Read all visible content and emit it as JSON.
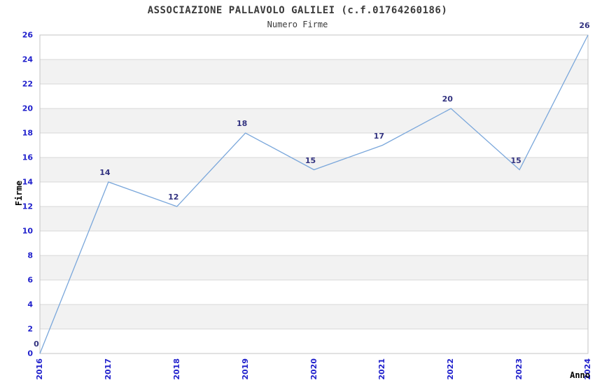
{
  "chart_data": {
    "type": "line",
    "title": "ASSOCIAZIONE PALLAVOLO GALILEI (c.f.01764260186)",
    "subtitle": "Numero Firme",
    "xlabel": "Anno",
    "ylabel": "Firme",
    "categories": [
      "2016",
      "2017",
      "2018",
      "2019",
      "2020",
      "2021",
      "2022",
      "2023",
      "2024"
    ],
    "series": [
      {
        "name": "Numero Firme",
        "values": [
          0,
          14,
          12,
          18,
          15,
          17,
          20,
          15,
          26
        ]
      }
    ],
    "ylim": [
      0,
      26
    ],
    "ytick_step": 2,
    "grid": "horizontal-only",
    "legend": "none",
    "banded_background": true,
    "data_labels_shown": true,
    "colors": {
      "background": "#ffffff",
      "band": "#f2f2f2",
      "gridline": "#d8d8d8",
      "plot_border": "#c4c4c4",
      "line": "#7aa7db",
      "tick_label": "#2121cc",
      "data_label": "#333380",
      "title": "#3a3a3a",
      "axis_title": "#000000"
    }
  }
}
